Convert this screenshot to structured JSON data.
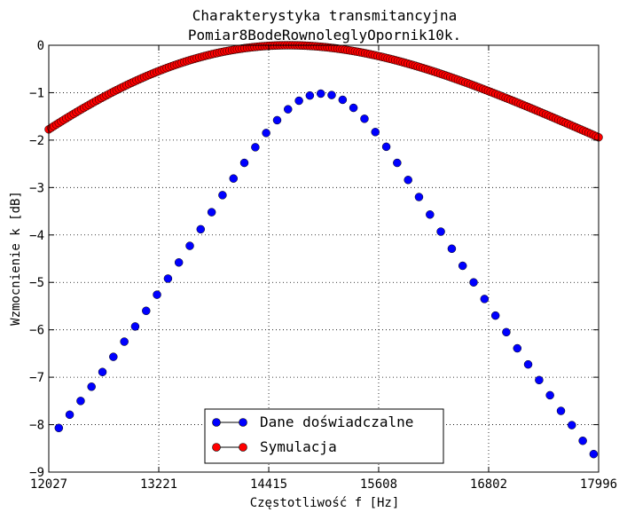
{
  "chart_data": {
    "type": "scatter",
    "title": "Charakterystyka transmitancyjna",
    "subtitle": "Pomiar8BodeRownoleglyOpornik10k.",
    "xlabel": "Częstotliwość f [Hz]",
    "ylabel": "Wzmocnienie k [dB]",
    "xlim": [
      12027,
      17996
    ],
    "ylim": [
      -9,
      0
    ],
    "x_ticks": [
      12027,
      13221,
      14415,
      15608,
      16802,
      17996
    ],
    "y_ticks": [
      0,
      -1,
      -2,
      -3,
      -4,
      -5,
      -6,
      -7,
      -8,
      -9
    ],
    "y_tick_labels": [
      "0",
      "−1",
      "−2",
      "−3",
      "−4",
      "−5",
      "−6",
      "−7",
      "−8",
      "−9"
    ],
    "grid": true,
    "legend_position": "bottom-center",
    "series": [
      {
        "name": "Dane doświadczalne",
        "color": "#0000ff",
        "marker": "circle",
        "x": [
          12136,
          12254,
          12373,
          12491,
          12610,
          12728,
          12847,
          12965,
          13084,
          13202,
          13321,
          13439,
          13558,
          13676,
          13795,
          13913,
          14032,
          14150,
          14269,
          14387,
          14506,
          14624,
          14743,
          14861,
          14980,
          15098,
          15217,
          15335,
          15454,
          15572,
          15691,
          15809,
          15928,
          16046,
          16165,
          16283,
          16402,
          16520,
          16639,
          16757,
          16876,
          16994,
          17113,
          17231,
          17350,
          17468,
          17587,
          17705,
          17824,
          17942
        ],
        "y": [
          -8.07,
          -7.79,
          -7.5,
          -7.2,
          -6.89,
          -6.57,
          -6.25,
          -5.93,
          -5.6,
          -5.26,
          -4.92,
          -4.58,
          -4.23,
          -3.88,
          -3.52,
          -3.16,
          -2.81,
          -2.48,
          -2.15,
          -1.85,
          -1.58,
          -1.35,
          -1.17,
          -1.06,
          -1.02,
          -1.05,
          -1.15,
          -1.32,
          -1.55,
          -1.83,
          -2.14,
          -2.48,
          -2.84,
          -3.2,
          -3.57,
          -3.93,
          -4.29,
          -4.65,
          -5.0,
          -5.35,
          -5.7,
          -6.05,
          -6.39,
          -6.73,
          -7.06,
          -7.38,
          -7.71,
          -8.01,
          -8.34,
          -8.62
        ]
      },
      {
        "name": "Symulacja",
        "color": "#ff0000",
        "marker": "circle",
        "curve": "bandpass",
        "center_hz": 14631,
        "q": 1.8,
        "points": 220
      }
    ]
  }
}
